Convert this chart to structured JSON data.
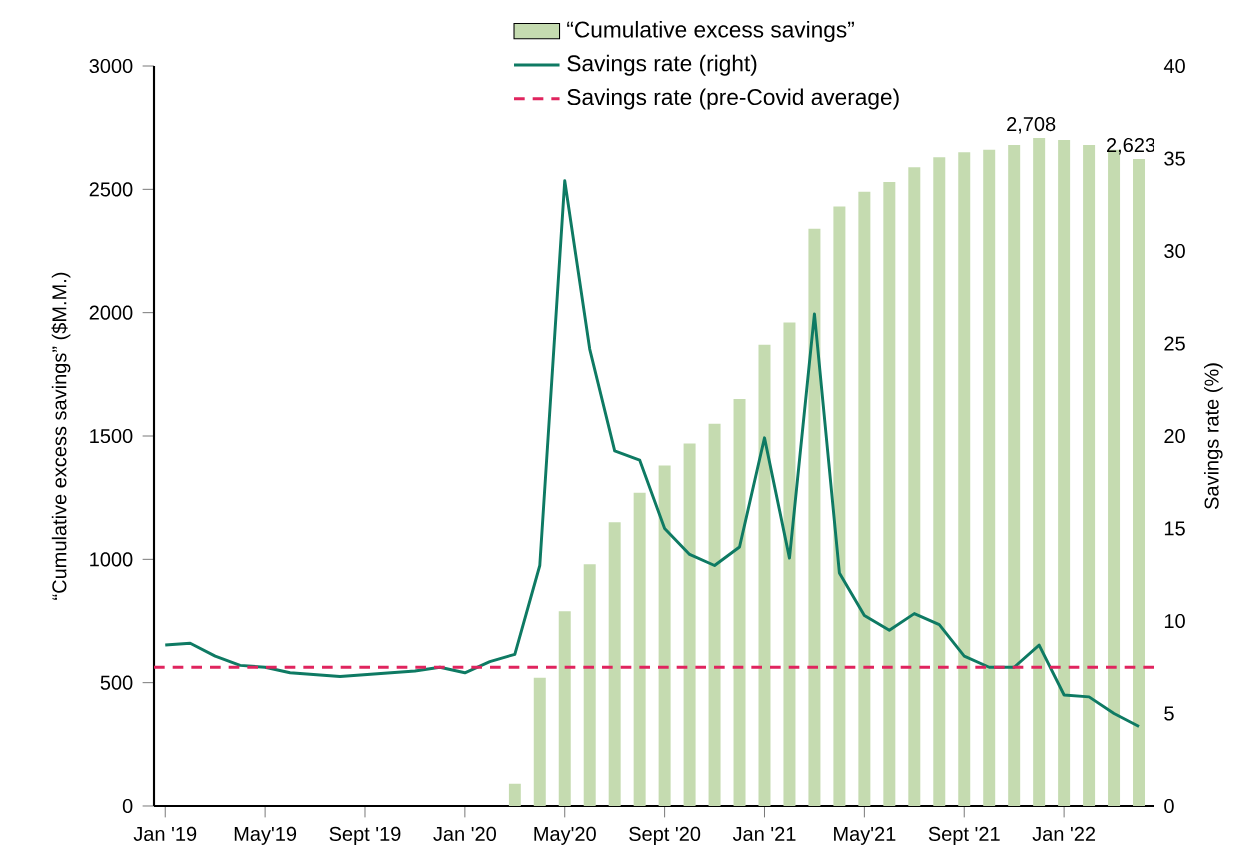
{
  "chart_data": {
    "type": "bar",
    "categories": [
      "Jan '19",
      null,
      null,
      null,
      "May'19",
      null,
      null,
      null,
      "Sept '19",
      null,
      null,
      null,
      "Jan '20",
      null,
      null,
      null,
      "May'20",
      null,
      null,
      null,
      "Sept '20",
      null,
      null,
      null,
      "Jan '21",
      null,
      null,
      null,
      "May'21",
      null,
      null,
      null,
      "Sept '21",
      null,
      null,
      null,
      "Jan '22",
      null,
      null,
      null
    ],
    "ylabel": "“Cumulative excess savings” ($M.M.)",
    "y2label": "Savings rate (%)",
    "ylim": [
      0,
      3000
    ],
    "yticks": [
      0,
      500,
      1000,
      1500,
      2000,
      2500,
      3000
    ],
    "y2lim": [
      0,
      40
    ],
    "y2ticks": [
      0,
      5,
      10,
      15,
      20,
      25,
      30,
      35,
      40
    ],
    "legend": "top",
    "series": [
      {
        "name": "“Cumulative excess savings”",
        "color": "#c5dbb0",
        "values": [
          null,
          null,
          null,
          null,
          null,
          null,
          null,
          null,
          null,
          null,
          null,
          null,
          null,
          null,
          90,
          520,
          790,
          980,
          1150,
          1270,
          1380,
          1470,
          1550,
          1650,
          1870,
          1960,
          2340,
          2430,
          2490,
          2530,
          2590,
          2630,
          2650,
          2660,
          2680,
          2708,
          2700,
          2680,
          2660,
          2623
        ],
        "value_labels": [
          null,
          null,
          null,
          null,
          null,
          null,
          null,
          null,
          null,
          null,
          null,
          null,
          null,
          null,
          null,
          null,
          null,
          null,
          null,
          null,
          null,
          null,
          null,
          null,
          null,
          null,
          null,
          null,
          null,
          null,
          null,
          null,
          null,
          null,
          null,
          "2,708",
          null,
          null,
          null,
          "2,623"
        ]
      },
      {
        "name": "Savings rate (right)",
        "type": "line",
        "axis": "y2",
        "color": "#0e7a63",
        "values": [
          8.7,
          8.8,
          8.1,
          7.6,
          7.5,
          7.2,
          7.1,
          7.0,
          7.1,
          7.2,
          7.3,
          7.5,
          7.2,
          7.8,
          8.2,
          13.0,
          33.8,
          24.7,
          19.2,
          18.7,
          15.0,
          13.6,
          13.0,
          14.0,
          19.9,
          13.4,
          26.6,
          12.6,
          10.3,
          9.5,
          10.4,
          9.8,
          8.1,
          7.5,
          7.5,
          8.7,
          6.0,
          5.9,
          5.0,
          4.3
        ]
      }
    ],
    "ref_lines": [
      {
        "axis": "y2",
        "value": 7.5,
        "label": "Savings rate (pre-Covid average)",
        "color": "#e0245e",
        "line_style": "dashed"
      }
    ]
  }
}
